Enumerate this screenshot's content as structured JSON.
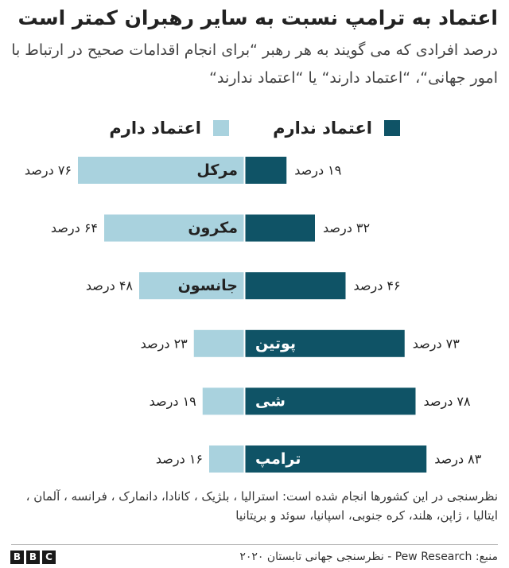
{
  "title": "اعتماد به ترامپ نسبت به سایر رهبران کمتر است",
  "subtitle": "درصد افرادی که می گویند به هر رهبر “برای انجام اقدامات صحیح در ارتباط با امور جهانی“، “اعتماد دارند“ یا “اعتماد ندارند“",
  "footnote": "نظرسنجی در این کشورها انجام شده است: استرالیا ، بلژیک ، کانادا، دانمارک ، فرانسه ، آلمان ، ایتالیا ، ژاپن، هلند، کره جنوبی، اسپانیا، سوئد و بریتانیا",
  "source": "منبع: Pew Research - نظرسنجی جهانی تابستان ۲۰۲۰",
  "logo": [
    "B",
    "B",
    "C"
  ],
  "chart_data": {
    "type": "bar",
    "orientation": "diverging-horizontal",
    "categories": [
      "مرکل",
      "مکرون",
      "جانسون",
      "پوتین",
      "شی",
      "ترامپ"
    ],
    "series": [
      {
        "name": "اعتماد ندارم",
        "color": "#0f5366",
        "values": [
          19,
          32,
          46,
          73,
          78,
          83
        ],
        "value_labels": [
          "۱۹ درصد",
          "۳۲ درصد",
          "۴۶ درصد",
          "۷۳ درصد",
          "۷۸ درصد",
          "۸۳ درصد"
        ]
      },
      {
        "name": "اعتماد دارم",
        "color": "#a9d2de",
        "values": [
          76,
          64,
          48,
          23,
          19,
          16
        ],
        "value_labels": [
          "۷۶ درصد",
          "۶۴ درصد",
          "۴۸ درصد",
          "۲۳ درصد",
          "۱۹ درصد",
          "۱۶ درصد"
        ]
      }
    ],
    "category_label_side": [
      "trust",
      "trust",
      "trust",
      "no-trust",
      "no-trust",
      "no-trust"
    ]
  }
}
